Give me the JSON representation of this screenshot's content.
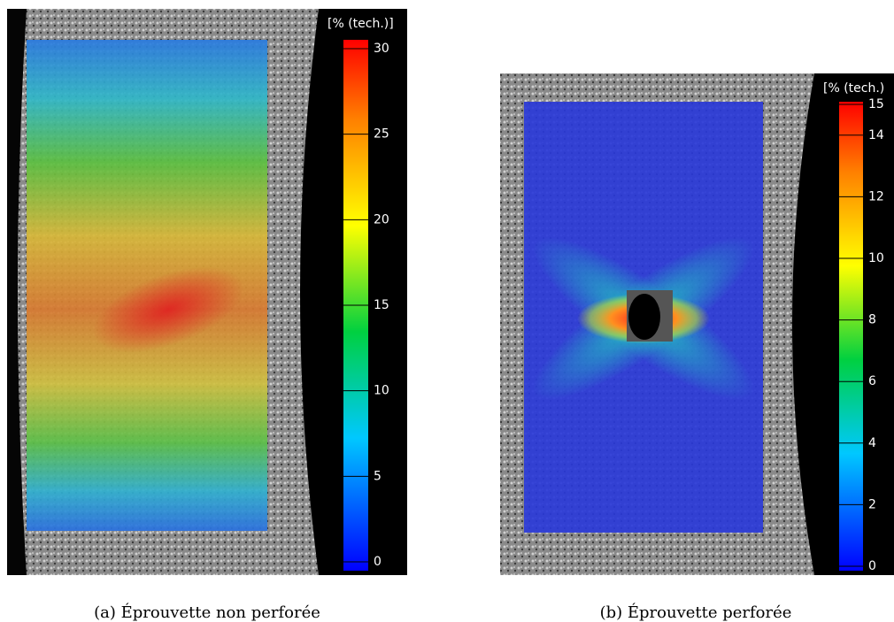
{
  "panels": [
    {
      "colorbar": {
        "label": "[% (tech.)]",
        "range": [
          0,
          30
        ],
        "ticks": [
          0,
          5,
          10,
          15,
          20,
          25,
          30
        ]
      },
      "caption": "(a) Éprouvette non perforée"
    },
    {
      "colorbar": {
        "label": "[% (tech.)",
        "range": [
          0,
          15
        ],
        "ticks": [
          0,
          2,
          4,
          6,
          8,
          10,
          12,
          14,
          15
        ]
      },
      "caption": "(b) Éprouvette perforée"
    }
  ]
}
